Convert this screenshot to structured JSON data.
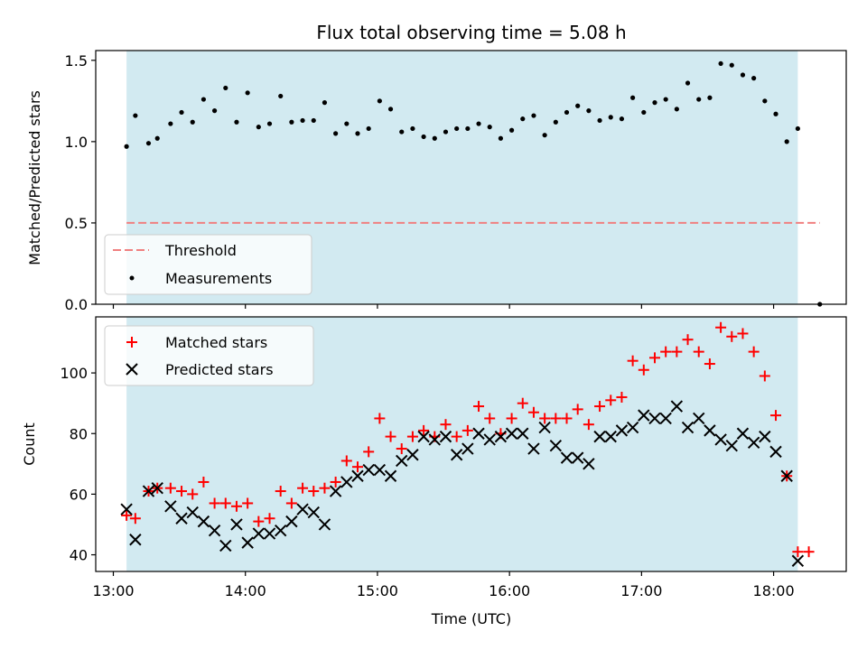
{
  "chart_data": [
    {
      "type": "scatter",
      "title": "Flux total observing time = 5.08 h",
      "ylabel": "Matched/Predicted stars",
      "ylim": [
        0,
        1.56
      ],
      "yticks": [
        0.0,
        0.5,
        1.0,
        1.5
      ],
      "ytick_labels": [
        "0.0",
        "0.5",
        "1.0",
        "1.5"
      ],
      "xlim": [
        "12:52",
        "18:33"
      ],
      "shaded_region": [
        "13:06",
        "18:11"
      ],
      "threshold": {
        "name": "Threshold",
        "y": 0.5,
        "x_range": [
          "13:06",
          "18:21"
        ],
        "color": "#f08080"
      },
      "legend": [
        "Threshold",
        "Measurements"
      ],
      "legend_position": "lower left",
      "series": [
        {
          "name": "Measurements",
          "color": "#000000",
          "x": [
            "13:06",
            "13:10",
            "13:16",
            "13:20",
            "13:26",
            "13:31",
            "13:36",
            "13:41",
            "13:46",
            "13:51",
            "13:56",
            "14:01",
            "14:06",
            "14:11",
            "14:16",
            "14:21",
            "14:26",
            "14:31",
            "14:36",
            "14:41",
            "14:46",
            "14:51",
            "14:56",
            "15:01",
            "15:06",
            "15:11",
            "15:16",
            "15:21",
            "15:26",
            "15:31",
            "15:36",
            "15:41",
            "15:46",
            "15:51",
            "15:56",
            "16:01",
            "16:06",
            "16:11",
            "16:16",
            "16:21",
            "16:26",
            "16:31",
            "16:36",
            "16:41",
            "16:46",
            "16:51",
            "16:56",
            "17:01",
            "17:06",
            "17:11",
            "17:16",
            "17:21",
            "17:26",
            "17:31",
            "17:36",
            "17:41",
            "17:46",
            "17:51",
            "17:56",
            "18:01",
            "18:06",
            "18:11",
            "18:16",
            "18:21"
          ],
          "y": [
            0.97,
            1.16,
            0.99,
            1.02,
            1.11,
            1.18,
            1.12,
            1.26,
            1.19,
            1.33,
            1.12,
            1.3,
            1.09,
            1.11,
            1.28,
            1.12,
            1.13,
            1.13,
            1.24,
            1.05,
            1.11,
            1.05,
            1.08,
            1.25,
            1.2,
            1.06,
            1.08,
            1.03,
            1.02,
            1.06,
            1.08,
            1.08,
            1.11,
            1.09,
            1.02,
            1.07,
            1.14,
            1.16,
            1.04,
            1.12,
            1.18,
            1.22,
            1.19,
            1.13,
            1.15,
            1.14,
            1.27,
            1.18,
            1.24,
            1.26,
            1.2,
            1.36,
            1.26,
            1.27,
            1.48,
            1.47,
            1.41,
            1.39,
            1.25,
            1.17,
            1.0,
            1.08,
            null,
            0.0
          ]
        }
      ]
    },
    {
      "type": "scatter",
      "xlabel": "Time (UTC)",
      "ylabel": "Count",
      "ylim": [
        34.5,
        118.5
      ],
      "yticks": [
        40,
        60,
        80,
        100
      ],
      "ytick_labels": [
        "40",
        "60",
        "80",
        "100"
      ],
      "xlim": [
        "12:52",
        "18:33"
      ],
      "xticks": [
        "13:00",
        "14:00",
        "15:00",
        "16:00",
        "17:00",
        "18:00"
      ],
      "xtick_labels": [
        "13:00",
        "14:00",
        "15:00",
        "16:00",
        "17:00",
        "18:00"
      ],
      "shaded_region": [
        "13:06",
        "18:11"
      ],
      "legend": [
        "Matched stars",
        "Predicted stars"
      ],
      "legend_position": "upper left",
      "series": [
        {
          "name": "Matched stars",
          "marker": "plus",
          "color": "#ff0000",
          "x": [
            "13:06",
            "13:10",
            "13:16",
            "13:20",
            "13:26",
            "13:31",
            "13:36",
            "13:41",
            "13:46",
            "13:51",
            "13:56",
            "14:01",
            "14:06",
            "14:11",
            "14:16",
            "14:21",
            "14:26",
            "14:31",
            "14:36",
            "14:41",
            "14:46",
            "14:51",
            "14:56",
            "15:01",
            "15:06",
            "15:11",
            "15:16",
            "15:21",
            "15:26",
            "15:31",
            "15:36",
            "15:41",
            "15:46",
            "15:51",
            "15:56",
            "16:01",
            "16:06",
            "16:11",
            "16:16",
            "16:21",
            "16:26",
            "16:31",
            "16:36",
            "16:41",
            "16:46",
            "16:51",
            "16:56",
            "17:01",
            "17:06",
            "17:11",
            "17:16",
            "17:21",
            "17:26",
            "17:31",
            "17:36",
            "17:41",
            "17:46",
            "17:51",
            "17:56",
            "18:01",
            "18:06",
            "18:11",
            "18:16",
            "18:21"
          ],
          "y": [
            53,
            52,
            61,
            62,
            62,
            61,
            60,
            64,
            57,
            57,
            56,
            57,
            51,
            52,
            61,
            57,
            62,
            61,
            62,
            64,
            71,
            69,
            74,
            85,
            79,
            75,
            79,
            81,
            79,
            83,
            79,
            81,
            89,
            85,
            80,
            85,
            90,
            87,
            85,
            85,
            85,
            88,
            83,
            89,
            91,
            92,
            104,
            101,
            105,
            107,
            107,
            111,
            107,
            103,
            115,
            112,
            113,
            107,
            99,
            86,
            66,
            41,
            41,
            null
          ]
        },
        {
          "name": "Predicted stars",
          "marker": "x",
          "color": "#000000",
          "x": [
            "13:06",
            "13:10",
            "13:16",
            "13:20",
            "13:26",
            "13:31",
            "13:36",
            "13:41",
            "13:46",
            "13:51",
            "13:56",
            "14:01",
            "14:06",
            "14:11",
            "14:16",
            "14:21",
            "14:26",
            "14:31",
            "14:36",
            "14:41",
            "14:46",
            "14:51",
            "14:56",
            "15:01",
            "15:06",
            "15:11",
            "15:16",
            "15:21",
            "15:26",
            "15:31",
            "15:36",
            "15:41",
            "15:46",
            "15:51",
            "15:56",
            "16:01",
            "16:06",
            "16:11",
            "16:16",
            "16:21",
            "16:26",
            "16:31",
            "16:36",
            "16:41",
            "16:46",
            "16:51",
            "16:56",
            "17:01",
            "17:06",
            "17:11",
            "17:16",
            "17:21",
            "17:26",
            "17:31",
            "17:36",
            "17:41",
            "17:46",
            "17:51",
            "17:56",
            "18:01",
            "18:06",
            "18:11"
          ],
          "y": [
            55,
            45,
            61,
            62,
            56,
            52,
            54,
            51,
            48,
            43,
            50,
            44,
            47,
            47,
            48,
            51,
            55,
            54,
            50,
            61,
            64,
            66,
            68,
            68,
            66,
            71,
            73,
            79,
            78,
            79,
            73,
            75,
            80,
            78,
            79,
            80,
            80,
            75,
            82,
            76,
            72,
            72,
            70,
            79,
            79,
            81,
            82,
            86,
            85,
            85,
            89,
            82,
            85,
            81,
            78,
            76,
            80,
            77,
            79,
            74,
            66,
            38
          ]
        }
      ]
    }
  ]
}
